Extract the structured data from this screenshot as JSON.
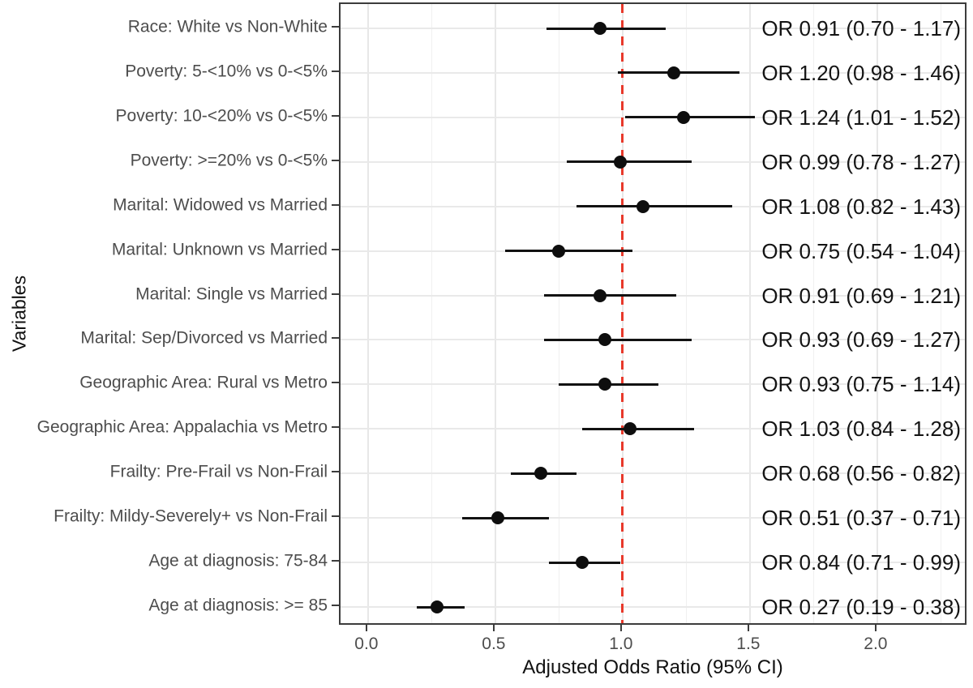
{
  "chart_data": {
    "type": "scatter",
    "subtype": "forest-plot",
    "title": "",
    "xlabel": "Adjusted Odds Ratio (95% CI)",
    "ylabel": "Variables",
    "xlim": [
      -0.108,
      2.357
    ],
    "x_ticks": [
      0.0,
      0.5,
      1.0,
      1.5,
      2.0
    ],
    "x_tick_labels": [
      "0.0",
      "0.5",
      "1.0",
      "1.5",
      "2.0"
    ],
    "x_minor_ticks": [
      0.25,
      0.75,
      1.25,
      1.75,
      2.25
    ],
    "grid": "major horizontal per row; major and minor vertical",
    "legend_position": "none",
    "reference_line": {
      "x": 1.0,
      "style": "dashed",
      "color": "#e8392b"
    },
    "rows": [
      {
        "label": "Race: White vs Non-White",
        "or": 0.91,
        "ci_low": 0.7,
        "ci_high": 1.17,
        "annotation": "OR 0.91 (0.70 - 1.17)"
      },
      {
        "label": "Poverty: 5-<10% vs 0-<5%",
        "or": 1.2,
        "ci_low": 0.98,
        "ci_high": 1.46,
        "annotation": "OR 1.20 (0.98 - 1.46)"
      },
      {
        "label": "Poverty: 10-<20% vs 0-<5%",
        "or": 1.24,
        "ci_low": 1.01,
        "ci_high": 1.52,
        "annotation": "OR 1.24 (1.01 - 1.52)"
      },
      {
        "label": "Poverty: >=20% vs 0-<5%",
        "or": 0.99,
        "ci_low": 0.78,
        "ci_high": 1.27,
        "annotation": "OR 0.99 (0.78 - 1.27)"
      },
      {
        "label": "Marital: Widowed vs Married",
        "or": 1.08,
        "ci_low": 0.82,
        "ci_high": 1.43,
        "annotation": "OR 1.08 (0.82 - 1.43)"
      },
      {
        "label": "Marital: Unknown vs Married",
        "or": 0.75,
        "ci_low": 0.54,
        "ci_high": 1.04,
        "annotation": "OR 0.75 (0.54 - 1.04)"
      },
      {
        "label": "Marital: Single vs Married",
        "or": 0.91,
        "ci_low": 0.69,
        "ci_high": 1.21,
        "annotation": "OR 0.91 (0.69 - 1.21)"
      },
      {
        "label": "Marital: Sep/Divorced vs Married",
        "or": 0.93,
        "ci_low": 0.69,
        "ci_high": 1.27,
        "annotation": "OR 0.93 (0.69 - 1.27)"
      },
      {
        "label": "Geographic Area: Rural vs Metro",
        "or": 0.93,
        "ci_low": 0.75,
        "ci_high": 1.14,
        "annotation": "OR 0.93 (0.75 - 1.14)"
      },
      {
        "label": "Geographic Area: Appalachia vs Metro",
        "or": 1.03,
        "ci_low": 0.84,
        "ci_high": 1.28,
        "annotation": "OR 1.03 (0.84 - 1.28)"
      },
      {
        "label": "Frailty: Pre-Frail vs Non-Frail",
        "or": 0.68,
        "ci_low": 0.56,
        "ci_high": 0.82,
        "annotation": "OR 0.68 (0.56 - 0.82)"
      },
      {
        "label": "Frailty: Mildy-Severely+ vs Non-Frail",
        "or": 0.51,
        "ci_low": 0.37,
        "ci_high": 0.71,
        "annotation": "OR 0.51 (0.37 - 0.71)"
      },
      {
        "label": "Age at diagnosis: 75-84",
        "or": 0.84,
        "ci_low": 0.71,
        "ci_high": 0.99,
        "annotation": "OR 0.84 (0.71 - 0.99)"
      },
      {
        "label": "Age at diagnosis: >= 85",
        "or": 0.27,
        "ci_low": 0.19,
        "ci_high": 0.38,
        "annotation": "OR 0.27 (0.19 - 0.38)"
      }
    ]
  },
  "colors": {
    "background": "#ffffff",
    "panel_background": "#ffffff",
    "panel_border": "#3c3c3c",
    "grid_major": "#e7e7e7",
    "grid_minor": "#f0f0f0",
    "reference_line": "#e8392b",
    "point": "#0e0e0e",
    "ci_line": "#121212",
    "axis_text": "#4d4d4d",
    "annotation_text": "#141414",
    "axis_title_text": "#111111"
  }
}
